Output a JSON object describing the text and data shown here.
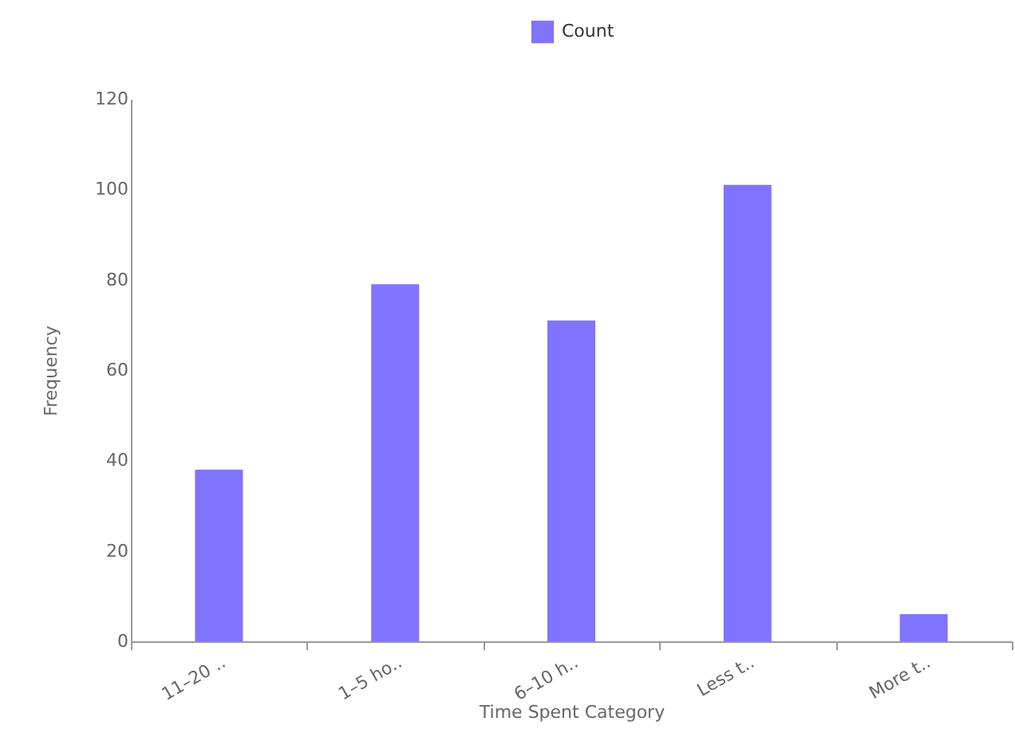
{
  "chart_data": {
    "type": "bar",
    "xlabel": "Time Spent Category",
    "ylabel": "Frequency",
    "categories": [
      "11–20 ..",
      "1–5 ho..",
      "6–10 h..",
      "Less t..",
      "More t.."
    ],
    "series": [
      {
        "name": "Count",
        "color": "#8074ff",
        "values": [
          38,
          79,
          71,
          101,
          6
        ]
      }
    ],
    "ylim": [
      0,
      120
    ],
    "yticks": [
      0,
      20,
      40,
      60,
      80,
      100,
      120
    ],
    "grid": false,
    "legend": "top"
  }
}
